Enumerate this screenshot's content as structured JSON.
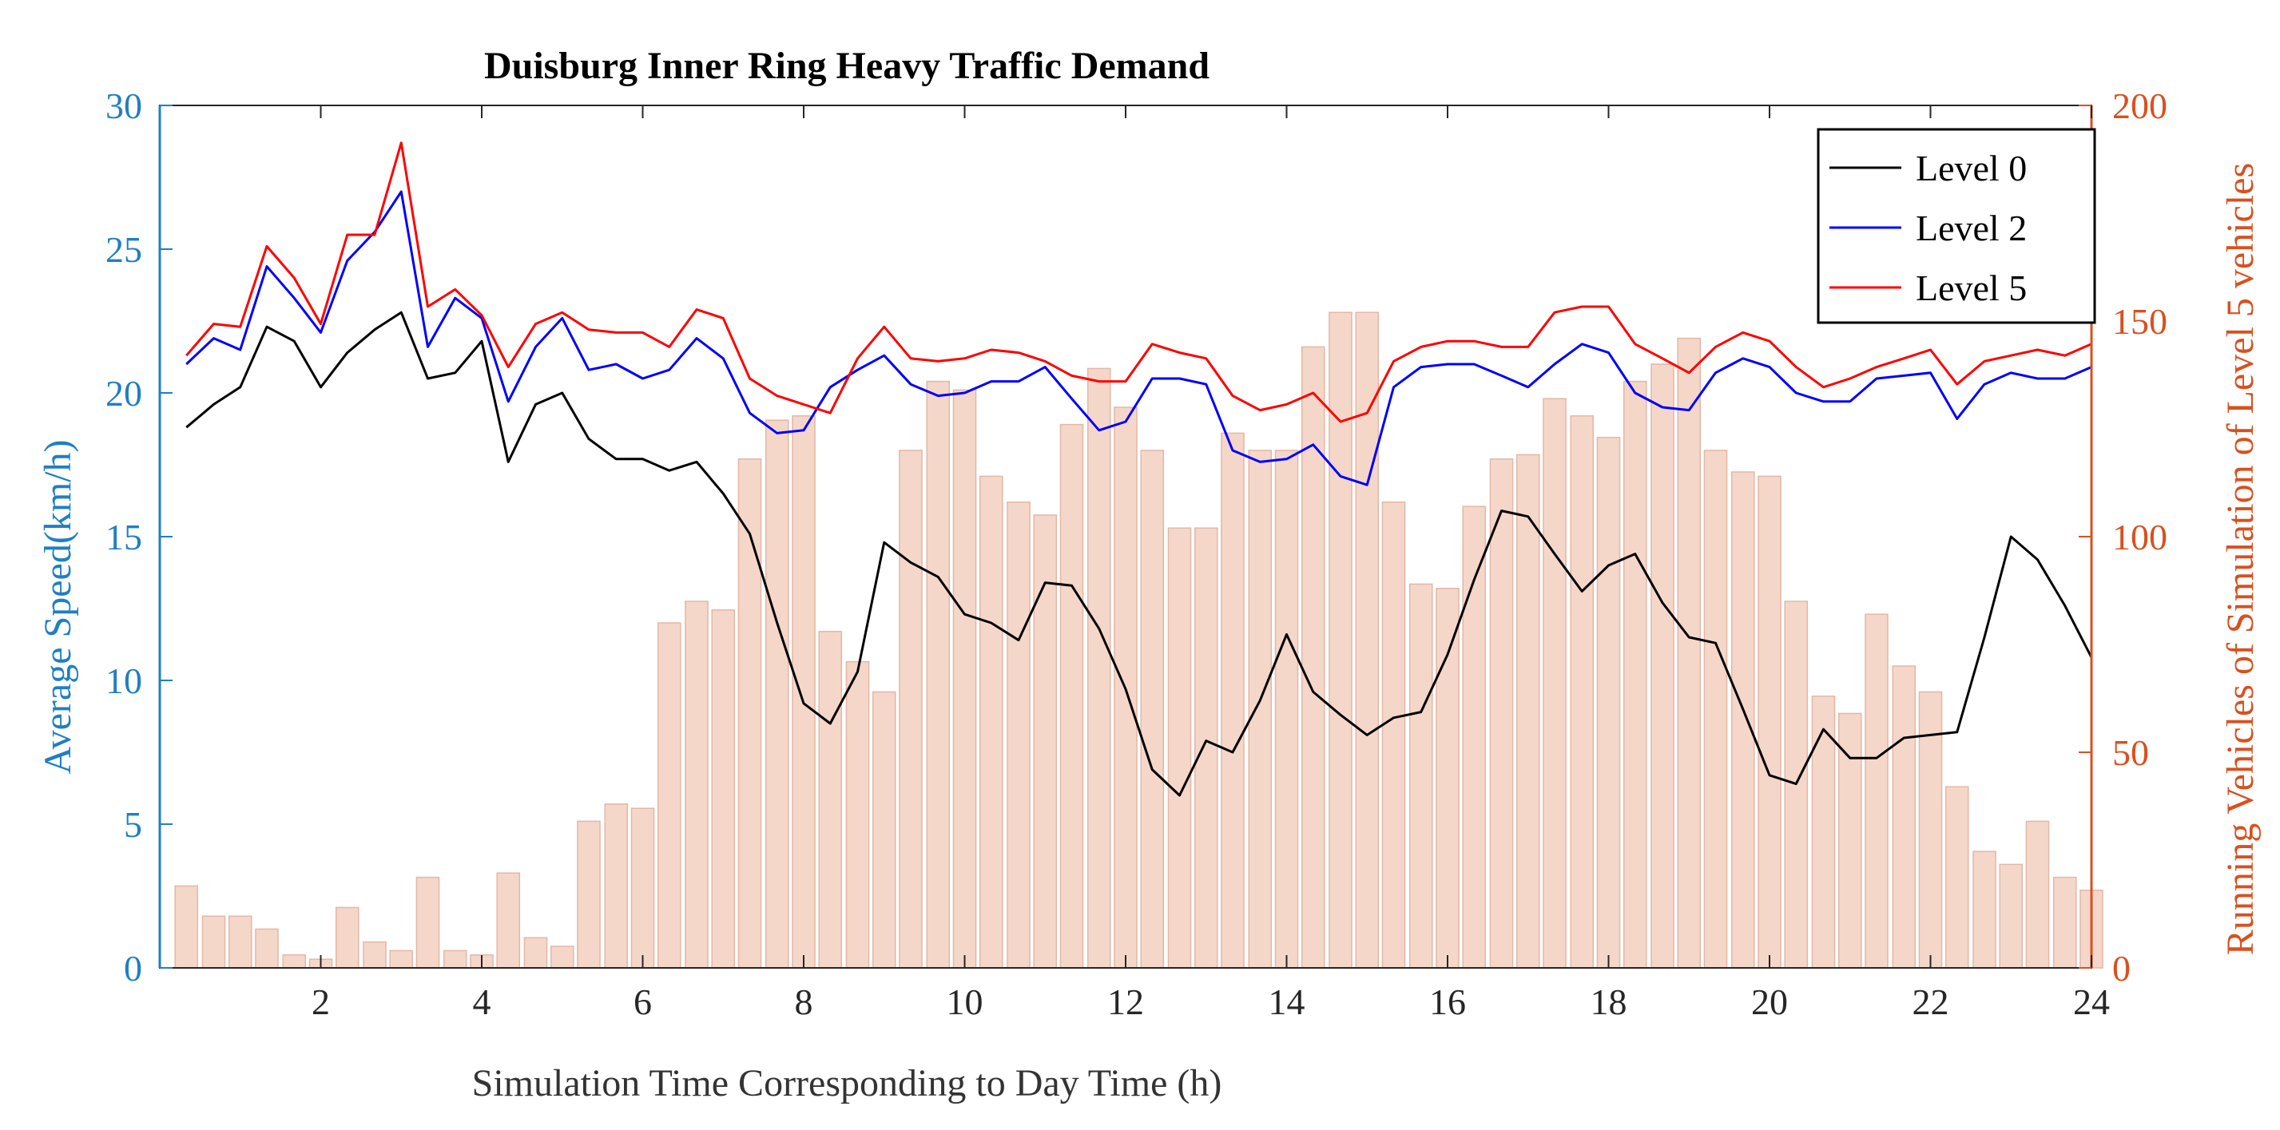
{
  "chart_data": {
    "type": "bar+line",
    "title": "Duisburg Inner Ring Heavy Traffic Demand",
    "xlabel": "Simulation Time Corresponding to Day Time (h)",
    "ylabel_left": "Average Speed(km/h)",
    "ylabel_right": "Running Vehicles of Simulation of Level 5 vehicles",
    "xlim": [
      0,
      24
    ],
    "ylim_left": [
      0,
      30
    ],
    "ylim_right": [
      0,
      200
    ],
    "xticks": [
      2,
      4,
      6,
      8,
      10,
      12,
      14,
      16,
      18,
      20,
      22,
      24
    ],
    "yticks_left": [
      0,
      5,
      10,
      15,
      20,
      25,
      30
    ],
    "yticks_right": [
      0,
      50,
      100,
      150,
      200
    ],
    "legend_position": "top-right",
    "colors": {
      "left_axis": "#1f7fc4",
      "right_axis": "#d9501e",
      "bars_fill": "#f5d7c9",
      "bars_stroke": "#e3b7a6",
      "level0": "#000000",
      "level2": "#0000ff",
      "level5": "#ff0000"
    },
    "bars": {
      "name": "Running Vehicles (Level 5)",
      "x": [
        0.33,
        0.67,
        1.0,
        1.33,
        1.67,
        2.0,
        2.33,
        2.67,
        3.0,
        3.33,
        3.67,
        4.0,
        4.33,
        4.67,
        5.0,
        5.33,
        5.67,
        6.0,
        6.33,
        6.67,
        7.0,
        7.33,
        7.67,
        8.0,
        8.33,
        8.67,
        9.0,
        9.33,
        9.67,
        10.0,
        10.33,
        10.67,
        11.0,
        11.33,
        11.67,
        12.0,
        12.33,
        12.67,
        13.0,
        13.33,
        13.67,
        14.0,
        14.33,
        14.67,
        15.0,
        15.33,
        15.67,
        16.0,
        16.33,
        16.67,
        17.0,
        17.33,
        17.67,
        18.0,
        18.33,
        18.67,
        19.0,
        19.33,
        19.67,
        20.0,
        20.33,
        20.67,
        21.0,
        21.33,
        21.67,
        22.0,
        22.33,
        22.67,
        23.0,
        23.33,
        23.67,
        24.0
      ],
      "values": [
        19,
        12,
        12,
        9,
        3,
        2,
        14,
        6,
        4,
        21,
        4,
        3,
        22,
        7,
        5,
        34,
        38,
        37,
        80,
        85,
        83,
        118,
        127,
        128,
        78,
        71,
        64,
        120,
        136,
        134,
        114,
        108,
        105,
        126,
        139,
        130,
        120,
        102,
        102,
        124,
        120,
        120,
        144,
        152,
        152,
        108,
        89,
        88,
        107,
        118,
        119,
        132,
        128,
        123,
        136,
        140,
        146,
        120,
        115,
        114,
        85,
        63,
        59,
        82,
        70,
        64,
        42,
        27,
        24,
        34,
        21,
        18
      ]
    },
    "series": [
      {
        "name": "Level 0",
        "x": [
          0.33,
          0.67,
          1.0,
          1.33,
          1.67,
          2.0,
          2.33,
          2.67,
          3.0,
          3.33,
          3.67,
          4.0,
          4.33,
          4.67,
          5.0,
          5.33,
          5.67,
          6.0,
          6.33,
          6.67,
          7.0,
          7.33,
          7.67,
          8.0,
          8.33,
          8.67,
          9.0,
          9.33,
          9.67,
          10.0,
          10.33,
          10.67,
          11.0,
          11.33,
          11.67,
          12.0,
          12.33,
          12.67,
          13.0,
          13.33,
          13.67,
          14.0,
          14.33,
          14.67,
          15.0,
          15.33,
          15.67,
          16.0,
          16.33,
          16.67,
          17.0,
          17.33,
          17.67,
          18.0,
          18.33,
          18.67,
          19.0,
          19.33,
          19.67,
          20.0,
          20.33,
          20.67,
          21.0,
          21.33,
          21.67,
          22.0,
          22.33,
          22.67,
          23.0,
          23.33,
          23.67,
          24.0
        ],
        "values": [
          18.8,
          19.6,
          20.2,
          22.3,
          21.8,
          20.2,
          21.4,
          22.2,
          22.8,
          20.5,
          20.7,
          21.8,
          17.6,
          19.6,
          20.0,
          18.4,
          17.7,
          17.7,
          17.3,
          17.6,
          16.5,
          15.1,
          12.0,
          9.2,
          8.5,
          10.3,
          14.8,
          14.1,
          13.6,
          12.3,
          12.0,
          11.4,
          13.4,
          13.3,
          11.8,
          9.7,
          6.9,
          6.0,
          7.9,
          7.5,
          9.3,
          11.6,
          9.6,
          8.8,
          8.1,
          8.7,
          8.9,
          10.9,
          13.5,
          15.9,
          15.7,
          14.4,
          13.1,
          14.0,
          14.4,
          12.7,
          11.5,
          11.3,
          9.0,
          6.7,
          6.4,
          8.3,
          7.3,
          7.3,
          8.0,
          8.1,
          8.2,
          11.5,
          15.0,
          14.2,
          12.6,
          10.8
        ]
      },
      {
        "name": "Level 2",
        "x": [
          0.33,
          0.67,
          1.0,
          1.33,
          1.67,
          2.0,
          2.33,
          2.67,
          3.0,
          3.33,
          3.67,
          4.0,
          4.33,
          4.67,
          5.0,
          5.33,
          5.67,
          6.0,
          6.33,
          6.67,
          7.0,
          7.33,
          7.67,
          8.0,
          8.33,
          8.67,
          9.0,
          9.33,
          9.67,
          10.0,
          10.33,
          10.67,
          11.0,
          11.33,
          11.67,
          12.0,
          12.33,
          12.67,
          13.0,
          13.33,
          13.67,
          14.0,
          14.33,
          14.67,
          15.0,
          15.33,
          15.67,
          16.0,
          16.33,
          16.67,
          17.0,
          17.33,
          17.67,
          18.0,
          18.33,
          18.67,
          19.0,
          19.33,
          19.67,
          20.0,
          20.33,
          20.67,
          21.0,
          21.33,
          21.67,
          22.0,
          22.33,
          22.67,
          23.0,
          23.33,
          23.67,
          24.0
        ],
        "values": [
          21.0,
          21.9,
          21.5,
          24.4,
          23.3,
          22.1,
          24.6,
          25.6,
          27.0,
          21.6,
          23.3,
          22.6,
          19.7,
          21.6,
          22.6,
          20.8,
          21.0,
          20.5,
          20.8,
          21.9,
          21.2,
          19.3,
          18.6,
          18.7,
          20.2,
          20.8,
          21.3,
          20.3,
          19.9,
          20.0,
          20.4,
          20.4,
          20.9,
          19.8,
          18.7,
          19.0,
          20.5,
          20.5,
          20.3,
          18.0,
          17.6,
          17.7,
          18.2,
          17.1,
          16.8,
          20.2,
          20.9,
          21.0,
          21.0,
          20.6,
          20.2,
          21.0,
          21.7,
          21.4,
          20.0,
          19.5,
          19.4,
          20.7,
          21.2,
          20.9,
          20.0,
          19.7,
          19.7,
          20.5,
          20.6,
          20.7,
          19.1,
          20.3,
          20.7,
          20.5,
          20.5,
          20.9
        ]
      },
      {
        "name": "Level 5",
        "x": [
          0.33,
          0.67,
          1.0,
          1.33,
          1.67,
          2.0,
          2.33,
          2.67,
          3.0,
          3.33,
          3.67,
          4.0,
          4.33,
          4.67,
          5.0,
          5.33,
          5.67,
          6.0,
          6.33,
          6.67,
          7.0,
          7.33,
          7.67,
          8.0,
          8.33,
          8.67,
          9.0,
          9.33,
          9.67,
          10.0,
          10.33,
          10.67,
          11.0,
          11.33,
          11.67,
          12.0,
          12.33,
          12.67,
          13.0,
          13.33,
          13.67,
          14.0,
          14.33,
          14.67,
          15.0,
          15.33,
          15.67,
          16.0,
          16.33,
          16.67,
          17.0,
          17.33,
          17.67,
          18.0,
          18.33,
          18.67,
          19.0,
          19.33,
          19.67,
          20.0,
          20.33,
          20.67,
          21.0,
          21.33,
          21.67,
          22.0,
          22.33,
          22.67,
          23.0,
          23.33,
          23.67,
          24.0
        ],
        "values": [
          21.3,
          22.4,
          22.3,
          25.1,
          24.0,
          22.4,
          25.5,
          25.5,
          28.7,
          23.0,
          23.6,
          22.7,
          20.9,
          22.4,
          22.8,
          22.2,
          22.1,
          22.1,
          21.6,
          22.9,
          22.6,
          20.5,
          19.9,
          19.6,
          19.3,
          21.2,
          22.3,
          21.2,
          21.1,
          21.2,
          21.5,
          21.4,
          21.1,
          20.6,
          20.4,
          20.4,
          21.7,
          21.4,
          21.2,
          19.9,
          19.4,
          19.6,
          20.0,
          19.0,
          19.3,
          21.1,
          21.6,
          21.8,
          21.8,
          21.6,
          21.6,
          22.8,
          23.0,
          23.0,
          21.7,
          21.2,
          20.7,
          21.6,
          22.1,
          21.8,
          20.9,
          20.2,
          20.5,
          20.9,
          21.2,
          21.5,
          20.3,
          21.1,
          21.3,
          21.5,
          21.3,
          21.7
        ]
      }
    ]
  }
}
